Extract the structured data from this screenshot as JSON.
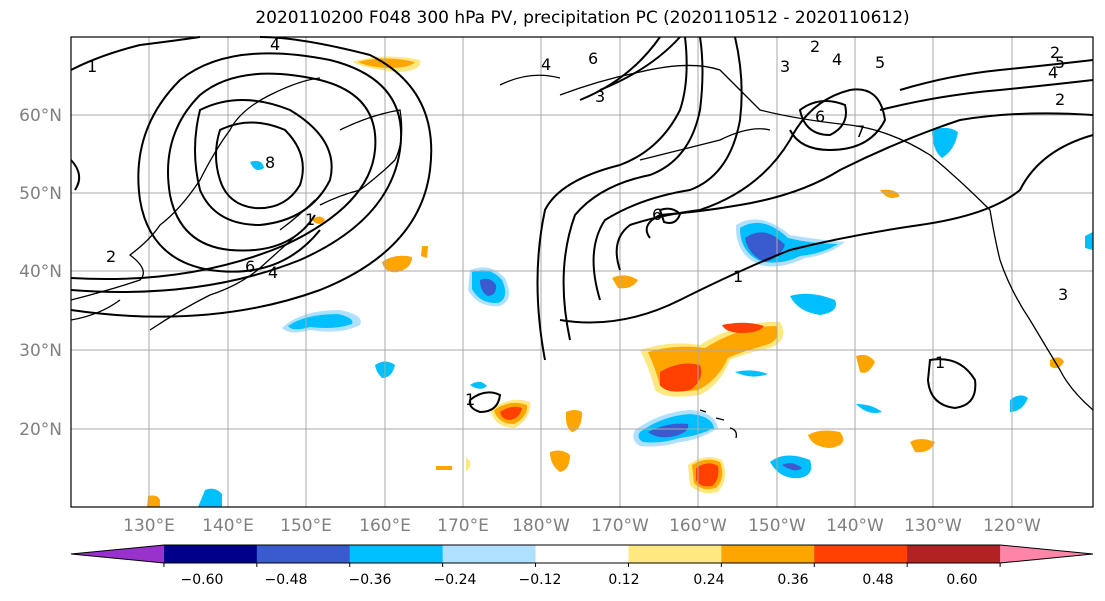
{
  "title": "2020110200 F048 300 hPa PV, precipitation PC (2020110512 - 2020110612)",
  "axes": {
    "lat_labels": [
      "60°N",
      "50°N",
      "40°N",
      "30°N",
      "20°N"
    ],
    "lon_labels": [
      "130°E",
      "140°E",
      "150°E",
      "160°E",
      "170°E",
      "180°W",
      "170°W",
      "160°W",
      "150°W",
      "140°W",
      "130°W",
      "120°W"
    ],
    "grid": true
  },
  "colorbar": {
    "tick_labels": [
      "−0.60",
      "−0.48",
      "−0.36",
      "−0.24",
      "−0.12",
      "0.12",
      "0.24",
      "0.36",
      "0.48",
      "0.60"
    ],
    "colors": [
      "#9932cc",
      "#00008b",
      "#3a5bd0",
      "#00bfff",
      "#b0e0ff",
      "#ffffff",
      "#ffe880",
      "#ffa500",
      "#ff4000",
      "#b22222",
      "#ff85a8"
    ],
    "extend": "both"
  },
  "contour_labels": [
    {
      "text": "1"
    },
    {
      "text": "4"
    },
    {
      "text": "2"
    },
    {
      "text": "6"
    },
    {
      "text": "8"
    },
    {
      "text": "1"
    },
    {
      "text": "4"
    },
    {
      "text": "3"
    },
    {
      "text": "2"
    },
    {
      "text": "6"
    },
    {
      "text": "1"
    },
    {
      "text": "2"
    },
    {
      "text": "4"
    },
    {
      "text": "5"
    },
    {
      "text": "3"
    },
    {
      "text": "6"
    },
    {
      "text": "4"
    },
    {
      "text": "2"
    },
    {
      "text": "7"
    },
    {
      "text": "1"
    },
    {
      "text": "1"
    },
    {
      "text": "6"
    },
    {
      "text": "5"
    },
    {
      "text": "4"
    },
    {
      "text": "3"
    }
  ]
}
